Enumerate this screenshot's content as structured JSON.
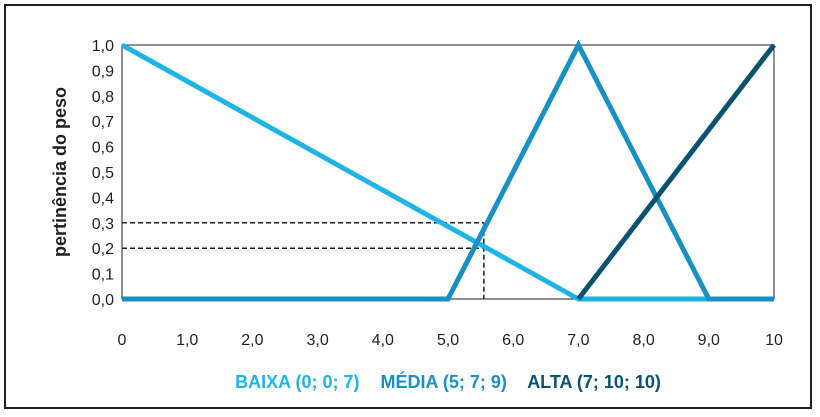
{
  "chart_data": {
    "type": "line",
    "title": "",
    "xlabel": "",
    "ylabel": "pertinência do peso",
    "xlim": [
      0,
      10
    ],
    "ylim": [
      0,
      1
    ],
    "x_ticks": [
      "0",
      "1,0",
      "2,0",
      "3,0",
      "4,0",
      "5,0",
      "6,0",
      "7,0",
      "8,0",
      "9,0",
      "10"
    ],
    "y_ticks": [
      "0,0",
      "0,1",
      "0,2",
      "0,3",
      "0,4",
      "0,5",
      "0,6",
      "0,7",
      "0,8",
      "0,9",
      "1,0"
    ],
    "grid": false,
    "legend_placement": "bottom",
    "series": [
      {
        "name": "BAIXA (0; 0; 7)",
        "color": "#1eb4e6",
        "points": [
          [
            0,
            1
          ],
          [
            7,
            0
          ],
          [
            10,
            0
          ]
        ]
      },
      {
        "name": "MÉDIA (5; 7; 9)",
        "color": "#1a8fc4",
        "points": [
          [
            0,
            0
          ],
          [
            5,
            0
          ],
          [
            7,
            1
          ],
          [
            9,
            0
          ],
          [
            10,
            0
          ]
        ]
      },
      {
        "name": "ALTA (7; 10; 10)",
        "color": "#0a5270",
        "points": [
          [
            7,
            0
          ],
          [
            10,
            1
          ]
        ]
      }
    ],
    "reference_lines": [
      {
        "x": 5.55,
        "y": 0.3
      },
      {
        "x": 5.55,
        "y": 0.2
      }
    ]
  }
}
